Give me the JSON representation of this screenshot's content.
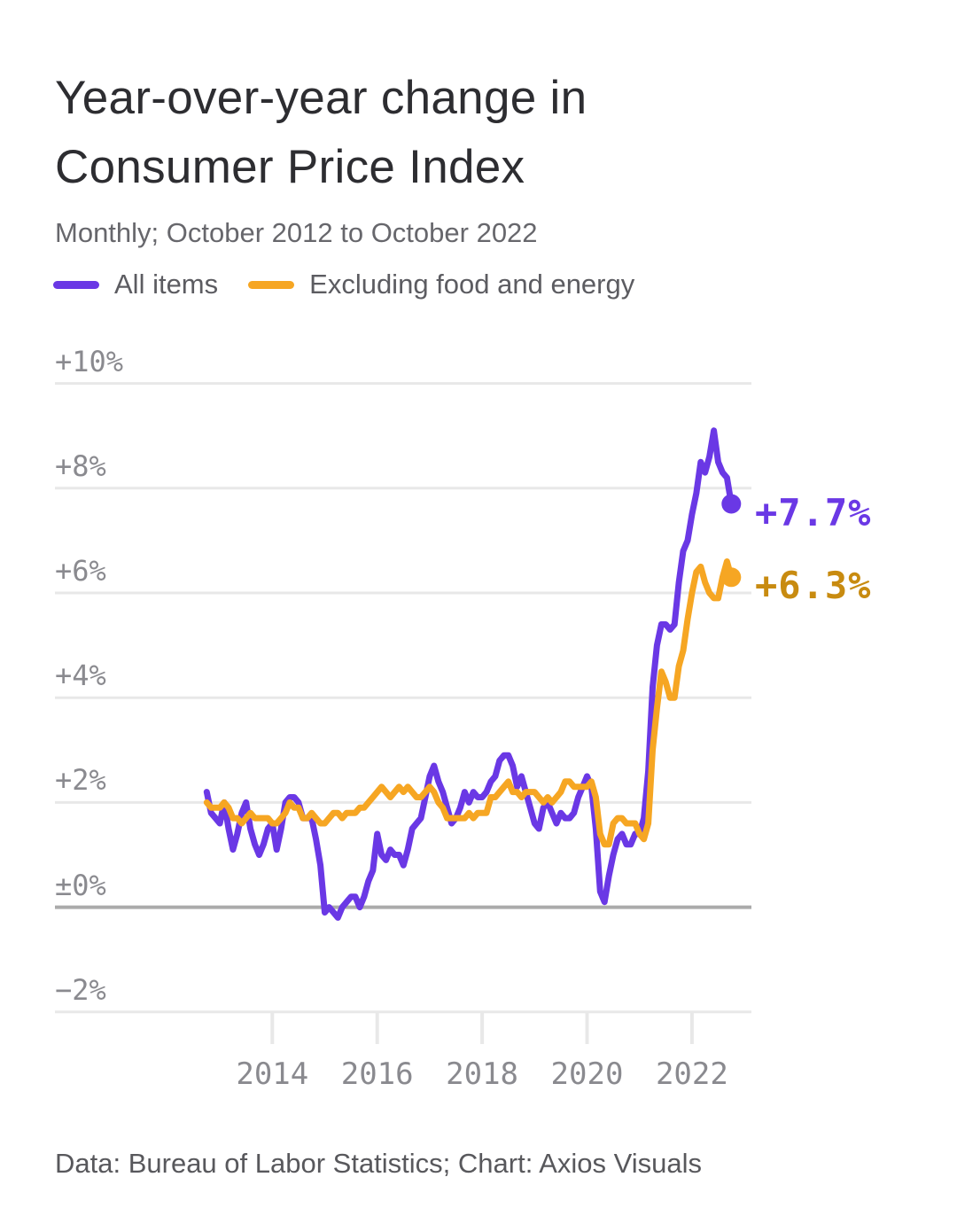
{
  "header": {
    "title": "Year-over-year change in Consumer Price Index",
    "subtitle": "Monthly; October 2012 to October 2022"
  },
  "footer": {
    "source": "Data: Bureau of Labor Statistics; Chart: Axios Visuals"
  },
  "colors": {
    "all_items": "#6a38e5",
    "core": "#f6a623",
    "core_label": "#c88b10",
    "gridline": "#e8e8e8",
    "zero_line": "#ababab",
    "axis_text": "#8a8a8f"
  },
  "chart_data": {
    "type": "line",
    "title": "Year-over-year change in Consumer Price Index",
    "subtitle": "Monthly; October 2012 to October 2022",
    "x_range": [
      "October 2012",
      "October 2022"
    ],
    "ylim": [
      -2,
      10
    ],
    "grid": "horizontal, zero line emphasized",
    "legend_position": "top-left",
    "y_ticks": [
      {
        "label": "+10%",
        "value": 10
      },
      {
        "label": "+8%",
        "value": 8
      },
      {
        "label": "+6%",
        "value": 6
      },
      {
        "label": "+4%",
        "value": 4
      },
      {
        "label": "+2%",
        "value": 2
      },
      {
        "label": "±0%",
        "value": 0
      },
      {
        "label": "−2%",
        "value": -2
      }
    ],
    "x_ticks": [
      {
        "label": "2014",
        "month": 15
      },
      {
        "label": "2016",
        "month": 39
      },
      {
        "label": "2018",
        "month": 63
      },
      {
        "label": "2020",
        "month": 87
      },
      {
        "label": "2022",
        "month": 111
      }
    ],
    "series": [
      {
        "name": "All items",
        "color": "#6a38e5",
        "label_color": "#6a38e5",
        "end_label": "+7.7%",
        "values": [
          2.2,
          1.8,
          1.7,
          1.6,
          2.0,
          1.5,
          1.1,
          1.4,
          1.8,
          2.0,
          1.5,
          1.2,
          1.0,
          1.2,
          1.5,
          1.6,
          1.1,
          1.5,
          2.0,
          2.1,
          2.1,
          2.0,
          1.7,
          1.7,
          1.7,
          1.3,
          0.8,
          -0.1,
          0.0,
          -0.1,
          -0.2,
          0.0,
          0.1,
          0.2,
          0.2,
          0.0,
          0.2,
          0.5,
          0.7,
          1.4,
          1.0,
          0.9,
          1.1,
          1.0,
          1.0,
          0.8,
          1.1,
          1.5,
          1.6,
          1.7,
          2.1,
          2.5,
          2.7,
          2.4,
          2.2,
          1.9,
          1.6,
          1.7,
          1.9,
          2.2,
          2.0,
          2.2,
          2.1,
          2.1,
          2.2,
          2.4,
          2.5,
          2.8,
          2.9,
          2.9,
          2.7,
          2.3,
          2.5,
          2.2,
          1.9,
          1.6,
          1.5,
          1.9,
          2.0,
          1.8,
          1.6,
          1.8,
          1.7,
          1.7,
          1.8,
          2.1,
          2.3,
          2.5,
          2.3,
          1.5,
          0.3,
          0.1,
          0.6,
          1.0,
          1.3,
          1.4,
          1.2,
          1.2,
          1.4,
          1.4,
          1.7,
          2.6,
          4.2,
          5.0,
          5.4,
          5.4,
          5.3,
          5.4,
          6.2,
          6.8,
          7.0,
          7.5,
          7.9,
          8.5,
          8.3,
          8.6,
          9.1,
          8.5,
          8.3,
          8.2,
          7.7
        ]
      },
      {
        "name": "Excluding food and energy",
        "color": "#f6a623",
        "label_color": "#c88b10",
        "end_label": "+6.3%",
        "values": [
          2.0,
          1.9,
          1.9,
          1.9,
          2.0,
          1.9,
          1.7,
          1.7,
          1.6,
          1.7,
          1.8,
          1.7,
          1.7,
          1.7,
          1.7,
          1.6,
          1.6,
          1.7,
          1.8,
          2.0,
          1.9,
          1.9,
          1.7,
          1.7,
          1.8,
          1.7,
          1.6,
          1.6,
          1.7,
          1.8,
          1.8,
          1.7,
          1.8,
          1.8,
          1.8,
          1.9,
          1.9,
          2.0,
          2.1,
          2.2,
          2.3,
          2.2,
          2.1,
          2.2,
          2.3,
          2.2,
          2.3,
          2.2,
          2.1,
          2.1,
          2.2,
          2.3,
          2.2,
          2.0,
          1.9,
          1.7,
          1.7,
          1.7,
          1.7,
          1.7,
          1.8,
          1.7,
          1.8,
          1.8,
          1.8,
          2.1,
          2.1,
          2.2,
          2.3,
          2.4,
          2.2,
          2.2,
          2.1,
          2.2,
          2.2,
          2.2,
          2.1,
          2.0,
          2.1,
          2.0,
          2.1,
          2.2,
          2.4,
          2.4,
          2.3,
          2.3,
          2.3,
          2.3,
          2.4,
          2.1,
          1.4,
          1.2,
          1.2,
          1.6,
          1.7,
          1.7,
          1.6,
          1.6,
          1.6,
          1.4,
          1.3,
          1.6,
          3.0,
          3.8,
          4.5,
          4.3,
          4.0,
          4.0,
          4.6,
          4.9,
          5.5,
          6.0,
          6.4,
          6.5,
          6.2,
          6.0,
          5.9,
          5.9,
          6.3,
          6.6,
          6.3
        ]
      }
    ]
  }
}
